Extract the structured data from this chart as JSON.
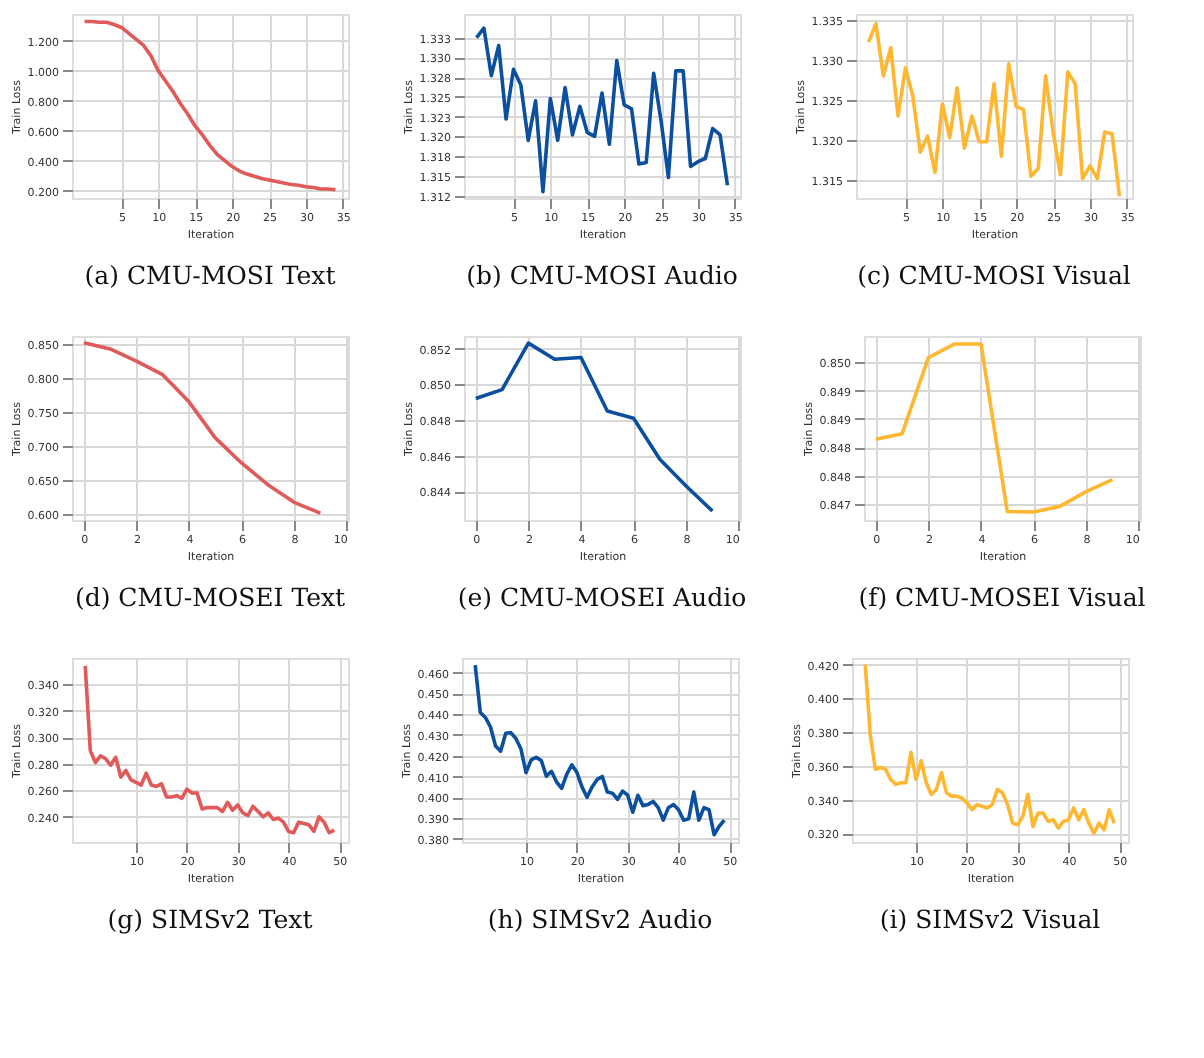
{
  "chart_data": [
    {
      "type": "line",
      "title": "(a)  CMU-MOSI Text",
      "xlabel": "Iteration",
      "ylabel": "Train Loss",
      "grid": true,
      "xlim": [
        -1.7,
        35.7
      ],
      "xticks": [
        5,
        10,
        15,
        20,
        25,
        30,
        35
      ],
      "ylim": [
        0.15,
        1.38
      ],
      "yticks": [
        {
          "value": 0.2,
          "label": "0.200"
        },
        {
          "value": 0.4,
          "label": "0.400"
        },
        {
          "value": 0.6,
          "label": "0.600"
        },
        {
          "value": 0.8,
          "label": "0.800"
        },
        {
          "value": 1.0,
          "label": "1.000"
        },
        {
          "value": 1.2,
          "label": "1.200"
        }
      ],
      "x": [
        0,
        1,
        2,
        3,
        4,
        5,
        6,
        7,
        8,
        9,
        10,
        11,
        12,
        13,
        14,
        15,
        16,
        17,
        18,
        19,
        20,
        21,
        22,
        23,
        24,
        25,
        26,
        27,
        28,
        29,
        30,
        31,
        32,
        33,
        34
      ],
      "series": [
        {
          "color": "#e05a5a",
          "values": [
            1.33,
            1.33,
            1.325,
            1.325,
            1.31,
            1.29,
            1.25,
            1.21,
            1.17,
            1.1,
            1.0,
            0.93,
            0.86,
            0.78,
            0.71,
            0.63,
            0.57,
            0.5,
            0.44,
            0.4,
            0.36,
            0.33,
            0.31,
            0.295,
            0.28,
            0.27,
            0.26,
            0.25,
            0.24,
            0.235,
            0.225,
            0.22,
            0.21,
            0.21,
            0.205
          ]
        }
      ]
    },
    {
      "type": "line",
      "title": "(b)  CMU-MOSI Audio",
      "xlabel": "Iteration",
      "ylabel": "Train Loss",
      "grid": true,
      "xlim": [
        -1.7,
        35.7
      ],
      "xticks": [
        5,
        10,
        15,
        20,
        25,
        30,
        35
      ],
      "ylim": [
        1.3122,
        1.3355
      ],
      "yticks": [
        {
          "value": 1.3125,
          "label": "1.312"
        },
        {
          "value": 1.315,
          "label": "1.315"
        },
        {
          "value": 1.3175,
          "label": "1.318"
        },
        {
          "value": 1.32,
          "label": "1.320"
        },
        {
          "value": 1.3225,
          "label": "1.323"
        },
        {
          "value": 1.325,
          "label": "1.325"
        },
        {
          "value": 1.3275,
          "label": "1.328"
        },
        {
          "value": 1.33,
          "label": "1.330"
        },
        {
          "value": 1.3325,
          "label": "1.333"
        }
      ],
      "x": [
        0,
        1,
        2,
        3,
        4,
        5,
        6,
        7,
        8,
        9,
        10,
        11,
        12,
        13,
        14,
        15,
        16,
        17,
        18,
        19,
        20,
        21,
        22,
        23,
        24,
        25,
        26,
        27,
        28,
        29,
        30,
        31,
        32,
        33,
        34
      ],
      "series": [
        {
          "color": "#0b4f9e",
          "values": [
            1.3325,
            1.3337,
            1.3277,
            1.3315,
            1.3222,
            1.3285,
            1.3265,
            1.3195,
            1.3245,
            1.313,
            1.3248,
            1.3195,
            1.3262,
            1.3202,
            1.3238,
            1.3205,
            1.32,
            1.3255,
            1.319,
            1.3296,
            1.324,
            1.3235,
            1.3165,
            1.3167,
            1.328,
            1.322,
            1.3148,
            1.3283,
            1.3283,
            1.3162,
            1.3168,
            1.3172,
            1.321,
            1.3202,
            1.3138
          ]
        }
      ]
    },
    {
      "type": "line",
      "title": "(c)  CMU-MOSI Visual",
      "xlabel": "Iteration",
      "ylabel": "Train Loss",
      "grid": true,
      "xlim": [
        -1.7,
        35.7
      ],
      "xticks": [
        5,
        10,
        15,
        20,
        25,
        30,
        35
      ],
      "ylim": [
        1.3128,
        1.3357
      ],
      "yticks": [
        1.315,
        {
          "value": 1.32,
          "label": "1.320"
        },
        1.325,
        {
          "value": 1.33,
          "label": "1.330"
        },
        1.335
      ],
      "x": [
        0,
        1,
        2,
        3,
        4,
        5,
        6,
        7,
        8,
        9,
        10,
        11,
        12,
        13,
        14,
        15,
        16,
        17,
        18,
        19,
        20,
        21,
        22,
        23,
        24,
        25,
        26,
        27,
        28,
        29,
        30,
        31,
        32,
        33,
        34
      ],
      "series": [
        {
          "color": "#ffb732",
          "values": [
            1.3322,
            1.3345,
            1.328,
            1.3315,
            1.323,
            1.329,
            1.3255,
            1.3185,
            1.3205,
            1.316,
            1.3245,
            1.3203,
            1.3265,
            1.319,
            1.323,
            1.3198,
            1.3198,
            1.327,
            1.318,
            1.3295,
            1.3242,
            1.3238,
            1.3155,
            1.3165,
            1.328,
            1.321,
            1.3157,
            1.3285,
            1.327,
            1.3152,
            1.3168,
            1.3152,
            1.321,
            1.3208,
            1.313
          ]
        }
      ]
    },
    {
      "type": "line",
      "title": "(d)  CMU-MOSEI Text",
      "xlabel": "Iteration",
      "ylabel": "Train Loss",
      "grid": true,
      "xlim": [
        -0.45,
        10.05
      ],
      "xticks": [
        0,
        2,
        4,
        6,
        8,
        10
      ],
      "ylim": [
        0.591,
        0.862
      ],
      "yticks": [
        {
          "value": 0.6,
          "label": "0.600"
        },
        {
          "value": 0.65,
          "label": "0.650"
        },
        {
          "value": 0.7,
          "label": "0.700"
        },
        {
          "value": 0.75,
          "label": "0.750"
        },
        {
          "value": 0.8,
          "label": "0.800"
        },
        {
          "value": 0.85,
          "label": "0.850"
        }
      ],
      "x": [
        0,
        1,
        2,
        3,
        4,
        5,
        6,
        7,
        8,
        9
      ],
      "series": [
        {
          "color": "#e05a5a",
          "values": [
            0.852,
            0.843,
            0.825,
            0.805,
            0.765,
            0.712,
            0.675,
            0.643,
            0.617,
            0.601
          ]
        }
      ]
    },
    {
      "type": "line",
      "title": "(e)  CMU-MOSEI Audio",
      "xlabel": "Iteration",
      "ylabel": "Train Loss",
      "grid": true,
      "xlim": [
        -0.45,
        10.05
      ],
      "xticks": [
        0,
        2,
        4,
        6,
        8,
        10
      ],
      "ylim": [
        0.8424,
        0.8527
      ],
      "yticks": [
        0.844,
        0.846,
        0.848,
        {
          "value": 0.85,
          "label": "0.850"
        },
        0.852
      ],
      "x": [
        0,
        1,
        2,
        3,
        4,
        5,
        6,
        7,
        8,
        9
      ],
      "series": [
        {
          "color": "#0b4f9e",
          "values": [
            0.8492,
            0.8497,
            0.8523,
            0.8514,
            0.8515,
            0.8485,
            0.8481,
            0.8458,
            0.8443,
            0.8429
          ]
        }
      ]
    },
    {
      "type": "line",
      "title": "(f)  CMU-MOSEI Visual",
      "xlabel": "Iteration",
      "ylabel": "Train Loss",
      "grid": true,
      "xlim": [
        -0.45,
        10.05
      ],
      "xticks": [
        0,
        2,
        4,
        6,
        8,
        10
      ],
      "ylim": [
        0.84672,
        0.84996
      ],
      "yticks": [
        {
          "value": 0.847,
          "label": "0.847"
        },
        {
          "value": 0.8475,
          "label": "0.848"
        },
        {
          "value": 0.848,
          "label": "0.848"
        },
        {
          "value": 0.8485,
          "label": "0.849"
        },
        {
          "value": 0.849,
          "label": "0.849"
        },
        {
          "value": 0.8495,
          "label": "0.850"
        }
      ],
      "x": [
        0,
        1,
        2,
        3,
        4,
        5,
        6,
        7,
        8,
        9
      ],
      "series": [
        {
          "color": "#ffb732",
          "values": [
            0.84814,
            0.84824,
            0.84958,
            0.84982,
            0.84982,
            0.84687,
            0.84686,
            0.84696,
            0.84722,
            0.84743
          ]
        }
      ]
    },
    {
      "type": "line",
      "title": "(g)  SIMSv2 Text",
      "xlabel": "Iteration",
      "ylabel": "Train Loss",
      "grid": true,
      "xlim": [
        -2.6,
        51.7
      ],
      "xticks": [
        10,
        20,
        30,
        40,
        50
      ],
      "ylim": [
        0.221,
        0.36
      ],
      "yticks": [
        {
          "value": 0.24,
          "label": "0.240"
        },
        {
          "value": 0.26,
          "label": "0.260"
        },
        {
          "value": 0.28,
          "label": "0.280"
        },
        {
          "value": 0.3,
          "label": "0.300"
        },
        {
          "value": 0.32,
          "label": "0.320"
        },
        {
          "value": 0.34,
          "label": "0.340"
        }
      ],
      "x": [
        0,
        1,
        2,
        3,
        4,
        5,
        6,
        7,
        8,
        9,
        10,
        11,
        12,
        13,
        14,
        15,
        16,
        17,
        18,
        19,
        20,
        21,
        22,
        23,
        24,
        25,
        26,
        27,
        28,
        29,
        30,
        31,
        32,
        33,
        34,
        35,
        36,
        37,
        38,
        39,
        40,
        41,
        42,
        43,
        44,
        45,
        46,
        47,
        48,
        49
      ],
      "series": [
        {
          "color": "#e05a5a",
          "values": [
            0.354,
            0.29,
            0.281,
            0.286,
            0.284,
            0.279,
            0.285,
            0.27,
            0.275,
            0.268,
            0.266,
            0.264,
            0.273,
            0.264,
            0.263,
            0.265,
            0.255,
            0.255,
            0.256,
            0.254,
            0.261,
            0.258,
            0.258,
            0.246,
            0.247,
            0.247,
            0.247,
            0.244,
            0.251,
            0.245,
            0.249,
            0.243,
            0.241,
            0.248,
            0.244,
            0.24,
            0.243,
            0.238,
            0.239,
            0.236,
            0.229,
            0.228,
            0.236,
            0.235,
            0.234,
            0.229,
            0.24,
            0.236,
            0.228,
            0.23
          ]
        }
      ]
    },
    {
      "type": "line",
      "title": "(h)  SIMSv2 Audio",
      "xlabel": "Iteration",
      "ylabel": "Train Loss",
      "grid": true,
      "xlim": [
        -2.6,
        51.7
      ],
      "xticks": [
        10,
        20,
        30,
        40,
        50
      ],
      "ylim": [
        0.3785,
        0.467
      ],
      "yticks": [
        {
          "value": 0.38,
          "label": "0.380"
        },
        {
          "value": 0.39,
          "label": "0.390"
        },
        {
          "value": 0.4,
          "label": "0.400"
        },
        {
          "value": 0.41,
          "label": "0.410"
        },
        {
          "value": 0.42,
          "label": "0.420"
        },
        {
          "value": 0.43,
          "label": "0.430"
        },
        {
          "value": 0.44,
          "label": "0.440"
        },
        {
          "value": 0.45,
          "label": "0.450"
        },
        {
          "value": 0.46,
          "label": "0.460"
        }
      ],
      "x": [
        0,
        1,
        2,
        3,
        4,
        5,
        6,
        7,
        8,
        9,
        10,
        11,
        12,
        13,
        14,
        15,
        16,
        17,
        18,
        19,
        20,
        21,
        22,
        23,
        24,
        25,
        26,
        27,
        28,
        29,
        30,
        31,
        32,
        33,
        34,
        35,
        36,
        37,
        38,
        39,
        40,
        41,
        42,
        43,
        44,
        45,
        46,
        47,
        48,
        49
      ],
      "series": [
        {
          "color": "#0b4f9e",
          "values": [
            0.4636,
            0.4408,
            0.4384,
            0.4338,
            0.4247,
            0.4222,
            0.4308,
            0.4311,
            0.4283,
            0.4232,
            0.4119,
            0.418,
            0.4192,
            0.4177,
            0.4101,
            0.4125,
            0.4074,
            0.4043,
            0.411,
            0.4156,
            0.412,
            0.405,
            0.4,
            0.405,
            0.4086,
            0.41,
            0.4025,
            0.402,
            0.399,
            0.403,
            0.401,
            0.3928,
            0.401,
            0.396,
            0.3965,
            0.398,
            0.395,
            0.389,
            0.395,
            0.3965,
            0.394,
            0.389,
            0.3897,
            0.4025,
            0.389,
            0.395,
            0.394,
            0.382,
            0.386,
            0.389
          ]
        }
      ]
    },
    {
      "type": "line",
      "title": "(i)  SIMSv2 Visual",
      "xlabel": "Iteration",
      "ylabel": "Train Loss",
      "grid": true,
      "xlim": [
        -2.6,
        51.7
      ],
      "xticks": [
        10,
        20,
        30,
        40,
        50
      ],
      "ylim": [
        0.3148,
        0.424
      ],
      "yticks": [
        {
          "value": 0.32,
          "label": "0.320"
        },
        {
          "value": 0.34,
          "label": "0.340"
        },
        {
          "value": 0.36,
          "label": "0.360"
        },
        {
          "value": 0.38,
          "label": "0.380"
        },
        {
          "value": 0.4,
          "label": "0.400"
        },
        {
          "value": 0.42,
          "label": "0.420"
        }
      ],
      "x": [
        0,
        1,
        2,
        3,
        4,
        5,
        6,
        7,
        8,
        9,
        10,
        11,
        12,
        13,
        14,
        15,
        16,
        17,
        18,
        19,
        20,
        21,
        22,
        23,
        24,
        25,
        26,
        27,
        28,
        29,
        30,
        31,
        32,
        33,
        34,
        35,
        36,
        37,
        38,
        39,
        40,
        41,
        42,
        43,
        44,
        45,
        46,
        47,
        48,
        49
      ],
      "series": [
        {
          "color": "#ffb732",
          "values": [
            0.42,
            0.378,
            0.358,
            0.359,
            0.358,
            0.352,
            0.349,
            0.35,
            0.35,
            0.368,
            0.352,
            0.363,
            0.35,
            0.343,
            0.346,
            0.356,
            0.344,
            0.342,
            0.342,
            0.341,
            0.338,
            0.334,
            0.337,
            0.336,
            0.335,
            0.337,
            0.346,
            0.344,
            0.337,
            0.326,
            0.325,
            0.33,
            0.343,
            0.324,
            0.332,
            0.332,
            0.327,
            0.328,
            0.323,
            0.327,
            0.328,
            0.335,
            0.328,
            0.334,
            0.326,
            0.32,
            0.326,
            0.322,
            0.334,
            0.326
          ]
        }
      ]
    }
  ]
}
